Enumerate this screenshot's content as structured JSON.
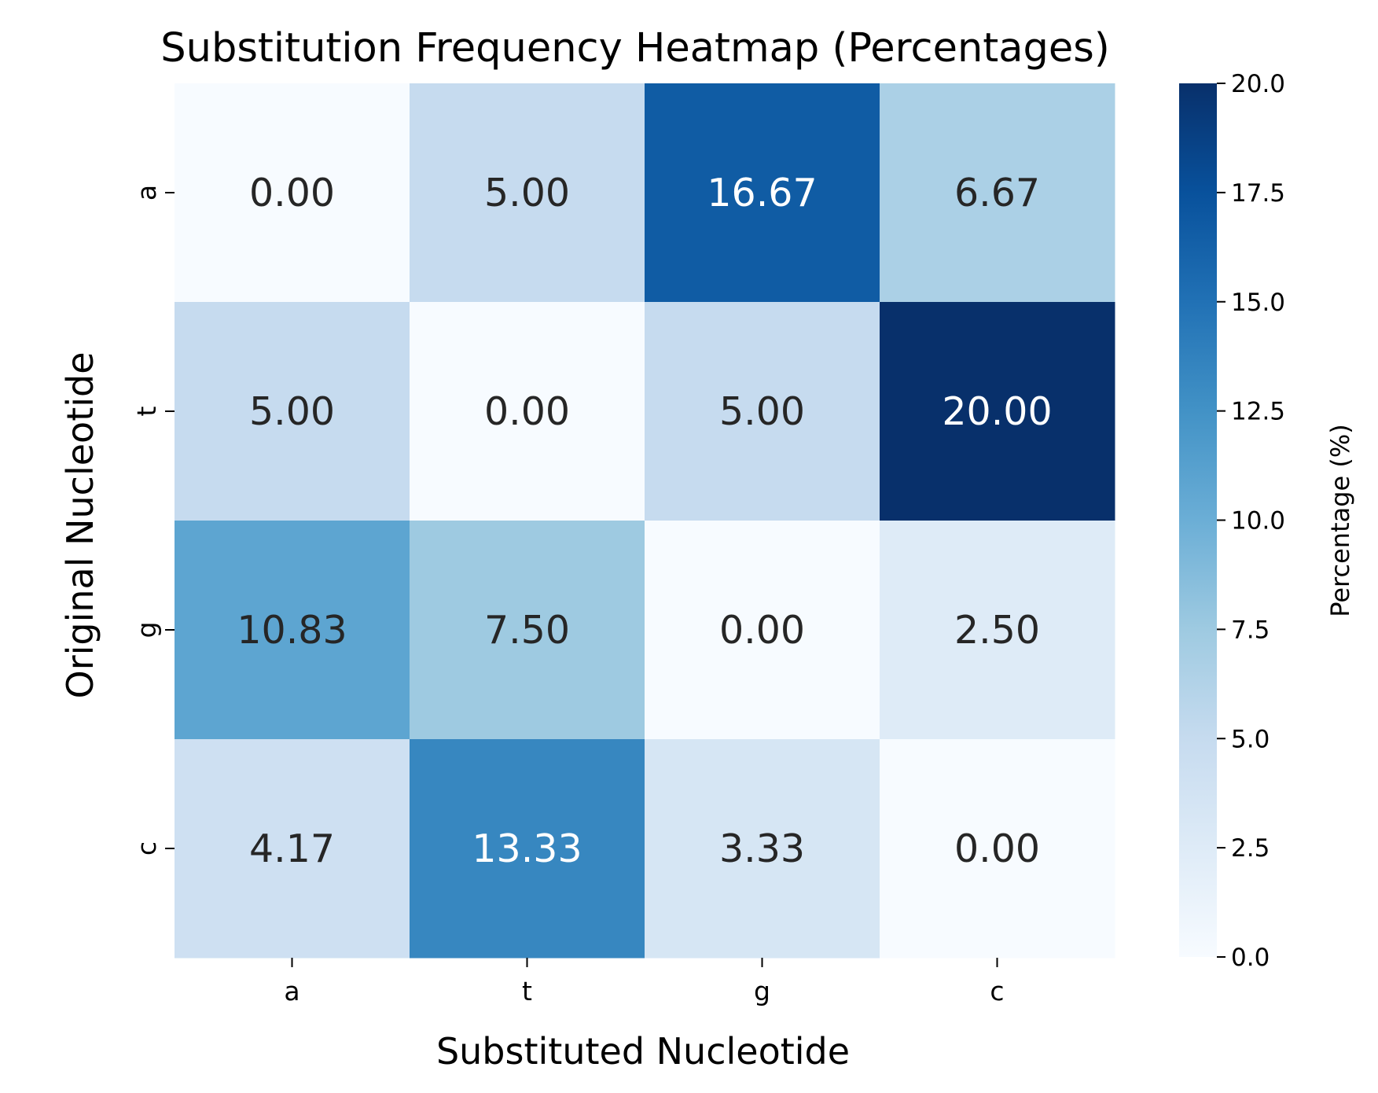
{
  "chart_data": {
    "type": "heatmap",
    "title": "Substitution Frequency Heatmap (Percentages)",
    "xlabel": "Substituted Nucleotide",
    "ylabel": "Original Nucleotide",
    "x_categories": [
      "a",
      "t",
      "g",
      "c"
    ],
    "y_categories": [
      "a",
      "t",
      "g",
      "c"
    ],
    "values": [
      [
        0.0,
        5.0,
        16.67,
        6.67
      ],
      [
        5.0,
        0.0,
        5.0,
        20.0
      ],
      [
        10.83,
        7.5,
        0.0,
        2.5
      ],
      [
        4.17,
        13.33,
        3.33,
        0.0
      ]
    ],
    "colorbar": {
      "label": "Percentage (%)",
      "range": [
        0,
        20
      ],
      "ticks": [
        "0.0",
        "2.5",
        "5.0",
        "7.5",
        "10.0",
        "12.5",
        "15.0",
        "17.5",
        "20.0"
      ],
      "colormap": "Blues",
      "colors": [
        "#f7fbff",
        "#deebf7",
        "#c6dbef",
        "#9ecae1",
        "#6baed6",
        "#4292c6",
        "#2171b5",
        "#08519c",
        "#08306b"
      ]
    },
    "annotation_colors": {
      "dark": "#262626",
      "light": "#ffffff"
    }
  }
}
